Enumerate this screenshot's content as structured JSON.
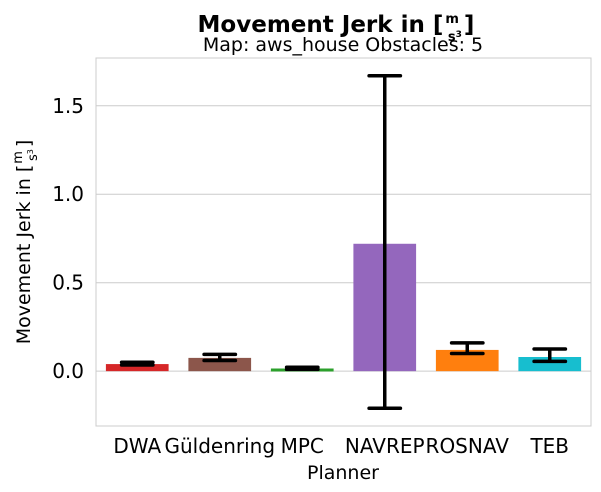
{
  "chart_data": {
    "type": "bar",
    "title": "Movement Jerk in [m/s³]",
    "title_parts": {
      "prefix": "Movement Jerk in [",
      "num": "m",
      "den": "s",
      "den_exp": "3",
      "suffix": "]"
    },
    "subtitle": "Map: aws_house Obstacles: 5",
    "xlabel": "Planner",
    "ylabel": "Movement Jerk in [m/s³]",
    "ylabel_parts": {
      "prefix": "Movement Jerk in [",
      "num": "m",
      "den": "s",
      "den_exp": "3",
      "suffix": "]"
    },
    "categories": [
      "DWA",
      "Güldenring",
      "MPC",
      "NAVREP",
      "ROSNAV",
      "TEB"
    ],
    "values": [
      0.04,
      0.075,
      0.015,
      0.72,
      0.12,
      0.08
    ],
    "error_low": [
      0.035,
      0.06,
      0.01,
      -0.21,
      0.1,
      0.055
    ],
    "error_high": [
      0.05,
      0.095,
      0.022,
      1.67,
      0.16,
      0.125
    ],
    "colors": [
      "#d62728",
      "#8c564b",
      "#2ca02c",
      "#9467bd",
      "#ff7f0e",
      "#17becf"
    ],
    "yticks": [
      0.0,
      0.5,
      1.0,
      1.5
    ],
    "ytick_labels": [
      "0.0",
      "0.5",
      "1.0",
      "1.5"
    ],
    "ylim": [
      -0.31,
      1.77
    ],
    "grid": "horizontal",
    "style": "seaborn-whitegrid"
  }
}
